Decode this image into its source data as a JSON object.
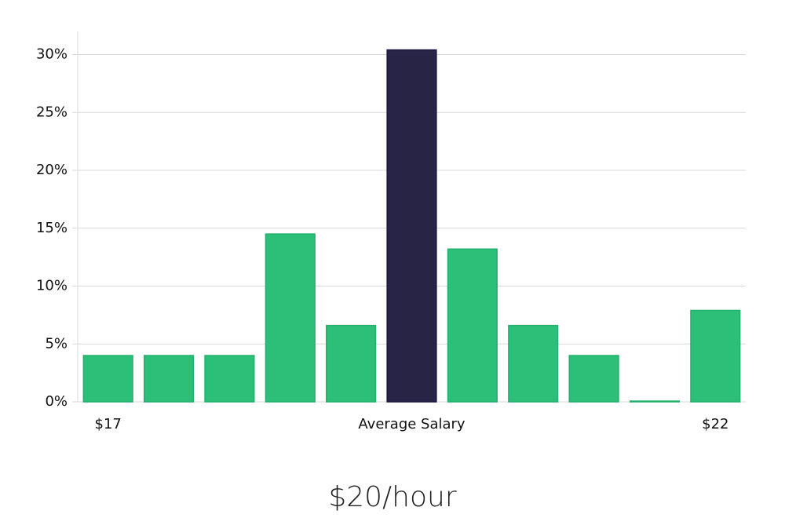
{
  "chart_data": {
    "type": "bar",
    "title": "$20/hour",
    "categories": [
      "$17",
      null,
      null,
      null,
      null,
      "Average Salary",
      null,
      null,
      null,
      null,
      "$22"
    ],
    "values": [
      4.0,
      4.0,
      4.0,
      14.5,
      6.6,
      30.4,
      13.2,
      6.6,
      4.0,
      0,
      7.9
    ],
    "colors": [
      "#2bbf78",
      "#2bbf78",
      "#2bbf78",
      "#2bbf78",
      "#2bbf78",
      "#282446",
      "#2bbf78",
      "#2bbf78",
      "#2bbf78",
      "#2bbf78",
      "#2bbf78"
    ],
    "ylim": [
      0,
      32
    ],
    "yticks": [
      {
        "value": 0,
        "label": "0%"
      },
      {
        "value": 5,
        "label": "5%"
      },
      {
        "value": 10,
        "label": "10%"
      },
      {
        "value": 15,
        "label": "15%"
      },
      {
        "value": 20,
        "label": "20%"
      },
      {
        "value": 25,
        "label": "25%"
      },
      {
        "value": 30,
        "label": "30%"
      }
    ],
    "grid": true
  }
}
